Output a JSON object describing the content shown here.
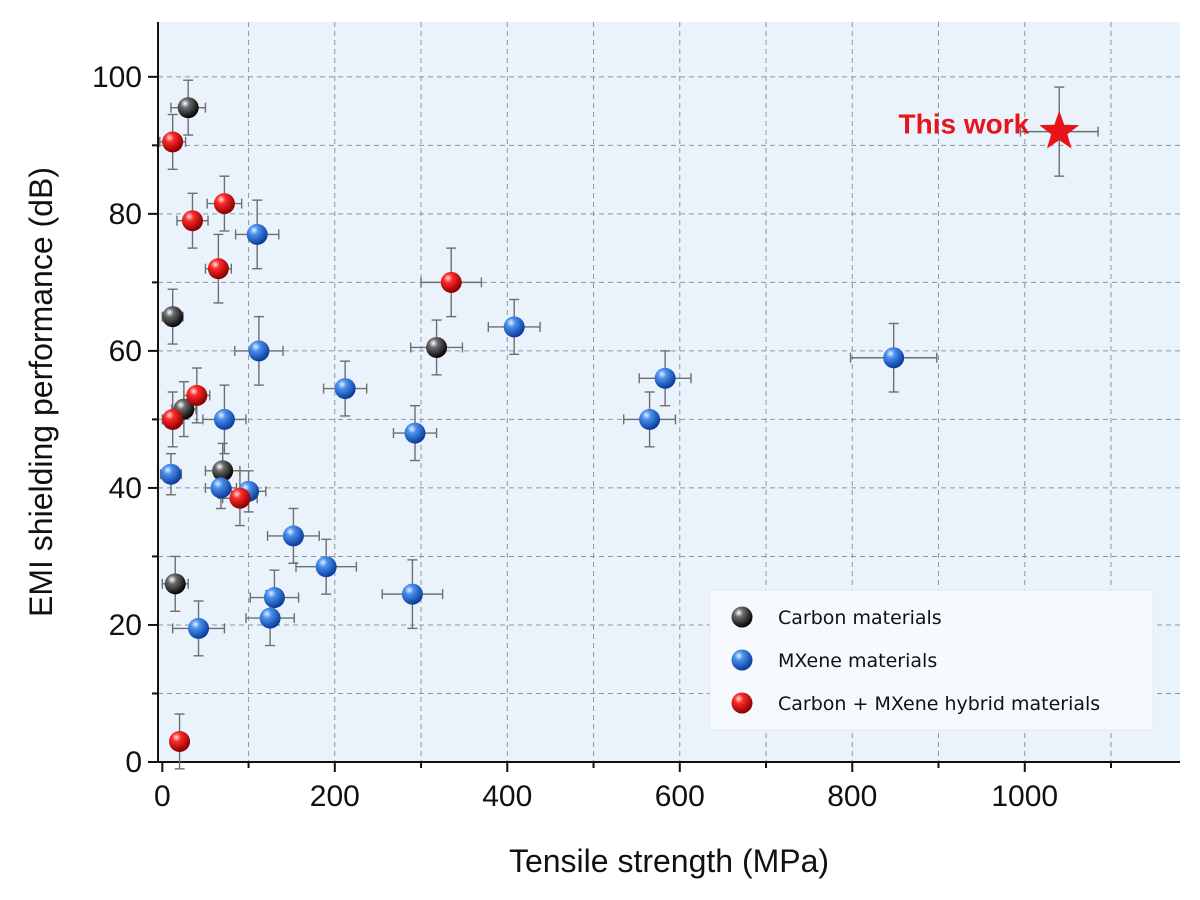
{
  "chart_data": {
    "type": "scatter",
    "xlabel": "Tensile strength (MPa)",
    "ylabel": "EMI shielding performance (dB)",
    "xlim": [
      -5,
      1180
    ],
    "ylim": [
      0,
      108
    ],
    "xticks": [
      0,
      200,
      400,
      600,
      800,
      1000
    ],
    "yticks": [
      0,
      20,
      40,
      60,
      80,
      100
    ],
    "grid": true,
    "legend_position": "bottom-right",
    "background_color": "#eaf3fc",
    "series": [
      {
        "name": "Carbon materials",
        "color": "#333333",
        "points": [
          {
            "x": 30,
            "y": 95.5,
            "xerr": 20,
            "yerr": 4
          },
          {
            "x": 12,
            "y": 65,
            "xerr": 12,
            "yerr": 4
          },
          {
            "x": 25,
            "y": 51.5,
            "xerr": 14,
            "yerr": 4
          },
          {
            "x": 318,
            "y": 60.5,
            "xerr": 30,
            "yerr": 4
          },
          {
            "x": 70,
            "y": 42.5,
            "xerr": 20,
            "yerr": 4
          },
          {
            "x": 15,
            "y": 26,
            "xerr": 15,
            "yerr": 4
          }
        ]
      },
      {
        "name": "MXene materials",
        "color": "#2f7de1",
        "points": [
          {
            "x": 110,
            "y": 77,
            "xerr": 25,
            "yerr": 5
          },
          {
            "x": 408,
            "y": 63.5,
            "xerr": 30,
            "yerr": 4
          },
          {
            "x": 112,
            "y": 60,
            "xerr": 28,
            "yerr": 5
          },
          {
            "x": 848,
            "y": 59,
            "xerr": 50,
            "yerr": 5
          },
          {
            "x": 583,
            "y": 56,
            "xerr": 30,
            "yerr": 4
          },
          {
            "x": 212,
            "y": 54.5,
            "xerr": 25,
            "yerr": 4
          },
          {
            "x": 72,
            "y": 50,
            "xerr": 25,
            "yerr": 5
          },
          {
            "x": 565,
            "y": 50,
            "xerr": 30,
            "yerr": 4
          },
          {
            "x": 293,
            "y": 48,
            "xerr": 25,
            "yerr": 4
          },
          {
            "x": 10,
            "y": 42,
            "xerr": 12,
            "yerr": 3
          },
          {
            "x": 68,
            "y": 40,
            "xerr": 18,
            "yerr": 3
          },
          {
            "x": 100,
            "y": 39.5,
            "xerr": 20,
            "yerr": 3
          },
          {
            "x": 152,
            "y": 33,
            "xerr": 30,
            "yerr": 4
          },
          {
            "x": 190,
            "y": 28.5,
            "xerr": 35,
            "yerr": 4
          },
          {
            "x": 290,
            "y": 24.5,
            "xerr": 35,
            "yerr": 5
          },
          {
            "x": 130,
            "y": 24,
            "xerr": 28,
            "yerr": 4
          },
          {
            "x": 125,
            "y": 21,
            "xerr": 28,
            "yerr": 4
          },
          {
            "x": 42,
            "y": 19.5,
            "xerr": 30,
            "yerr": 4
          }
        ]
      },
      {
        "name": "Carbon + MXene hybrid materials",
        "color": "#e8141b",
        "points": [
          {
            "x": 12,
            "y": 90.5,
            "xerr": 15,
            "yerr": 4
          },
          {
            "x": 72,
            "y": 81.5,
            "xerr": 20,
            "yerr": 4
          },
          {
            "x": 35,
            "y": 79,
            "xerr": 18,
            "yerr": 4
          },
          {
            "x": 65,
            "y": 72,
            "xerr": 15,
            "yerr": 5
          },
          {
            "x": 335,
            "y": 70,
            "xerr": 35,
            "yerr": 5
          },
          {
            "x": 40,
            "y": 53.5,
            "xerr": 15,
            "yerr": 4
          },
          {
            "x": 12,
            "y": 50,
            "xerr": 12,
            "yerr": 4
          },
          {
            "x": 90,
            "y": 38.5,
            "xerr": 20,
            "yerr": 4
          },
          {
            "x": 20,
            "y": 3,
            "xerr": 10,
            "yerr": 4
          }
        ]
      }
    ],
    "highlight": {
      "label": "This work",
      "marker": "star",
      "color": "#e8141b",
      "x": 1040,
      "y": 92,
      "xerr": 45,
      "yerr": 6.5
    }
  }
}
